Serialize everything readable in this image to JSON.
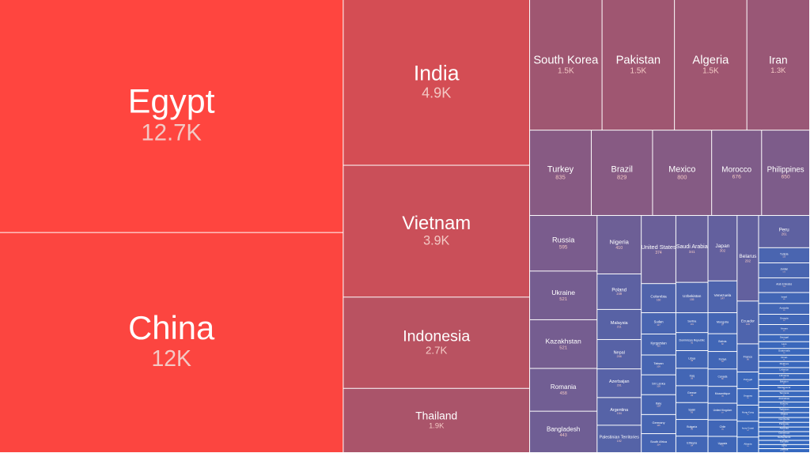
{
  "chart_data": {
    "type": "treemap",
    "title": "",
    "colors": {
      "high": "#ff453f",
      "mid": "#ac5468",
      "low": "#3568bf",
      "label": "#ffffff",
      "value_label": "#f3c8c4",
      "border": "#ffffff"
    },
    "columns": [
      {
        "groups": [
          {
            "items": [
              {
                "name": "Egypt",
                "value": 12700,
                "label": "12.7K"
              },
              {
                "name": "China",
                "value": 12000,
                "label": "12K"
              }
            ]
          }
        ]
      },
      {
        "groups": [
          {
            "items": [
              {
                "name": "India",
                "value": 4900,
                "label": "4.9K"
              },
              {
                "name": "Vietnam",
                "value": 3900,
                "label": "3.9K"
              },
              {
                "name": "Indonesia",
                "value": 2700,
                "label": "2.7K"
              },
              {
                "name": "Thailand",
                "value": 1900,
                "label": "1.9K"
              }
            ]
          }
        ]
      },
      {
        "groups": [
          {
            "layout": "row",
            "items": [
              {
                "name": "South Korea",
                "value": 1500,
                "label": "1.5K"
              },
              {
                "name": "Pakistan",
                "value": 1500,
                "label": "1.5K"
              },
              {
                "name": "Algeria",
                "value": 1500,
                "label": "1.5K"
              },
              {
                "name": "Iran",
                "value": 1300,
                "label": "1.3K"
              }
            ]
          },
          {
            "layout": "row",
            "items": [
              {
                "name": "Turkey",
                "value": 835,
                "label": "835"
              },
              {
                "name": "Brazil",
                "value": 829,
                "label": "829"
              },
              {
                "name": "Mexico",
                "value": 800,
                "label": "800"
              },
              {
                "name": "Morocco",
                "value": 676,
                "label": "676"
              },
              {
                "name": "Philippines",
                "value": 650,
                "label": "650"
              }
            ]
          },
          {
            "layout": "columns",
            "columns": [
              [
                {
                  "name": "Russia",
                  "value": 595,
                  "label": "595"
                },
                {
                  "name": "Ukraine",
                  "value": 521,
                  "label": "521"
                },
                {
                  "name": "Kazakhstan",
                  "value": 521,
                  "label": "521"
                },
                {
                  "name": "Romania",
                  "value": 458,
                  "label": "458"
                },
                {
                  "name": "Bangladesh",
                  "value": 443,
                  "label": "443"
                }
              ],
              [
                {
                  "name": "Nigeria",
                  "value": 410,
                  "label": "410"
                },
                {
                  "name": "Poland",
                  "value": 249,
                  "label": "249"
                },
                {
                  "name": "Malaysia",
                  "value": 211,
                  "label": "211"
                },
                {
                  "name": "Nepal",
                  "value": 206,
                  "label": "206"
                },
                {
                  "name": "Azerbaijan",
                  "value": 201,
                  "label": "201"
                },
                {
                  "name": "Argentina",
                  "value": 194,
                  "label": "194"
                },
                {
                  "name": "Palestinian Territories",
                  "value": 192,
                  "label": "192"
                }
              ],
              [
                {
                  "name": "United States",
                  "value": 374,
                  "label": "374"
                },
                {
                  "name": "Colombia",
                  "value": 160,
                  "label": "160"
                },
                {
                  "name": "Sudan",
                  "value": 117,
                  "label": "117"
                },
                {
                  "name": "Kyrgyzstan",
                  "value": 115,
                  "label": "115"
                },
                {
                  "name": "Taiwan",
                  "value": 109,
                  "label": "109"
                },
                {
                  "name": "Sri Lanka",
                  "value": 109,
                  "label": "109"
                },
                {
                  "name": "Italy",
                  "value": 109,
                  "label": "109"
                },
                {
                  "name": "Germany",
                  "value": 105,
                  "label": "105"
                },
                {
                  "name": "South Africa",
                  "value": 104,
                  "label": "104"
                }
              ],
              [
                {
                  "name": "Saudi Arabia",
                  "value": 341,
                  "label": "341"
                },
                {
                  "name": "Uzbekistan",
                  "value": 155,
                  "label": "155"
                },
                {
                  "name": "Serbia",
                  "value": 101,
                  "label": "101"
                },
                {
                  "name": "Dominican Republic",
                  "value": 92,
                  "label": "92"
                },
                {
                  "name": "Libya",
                  "value": 90,
                  "label": "90"
                },
                {
                  "name": "Iraq",
                  "value": 89,
                  "label": "89"
                },
                {
                  "name": "Greece",
                  "value": 86,
                  "label": "86"
                },
                {
                  "name": "Spain",
                  "value": 86,
                  "label": "86"
                },
                {
                  "name": "Bulgaria",
                  "value": 85,
                  "label": "85"
                },
                {
                  "name": "Ethiopia",
                  "value": 84,
                  "label": "84"
                }
              ],
              [
                {
                  "name": "Japan",
                  "value": 302,
                  "label": "302"
                },
                {
                  "name": "Venezuela",
                  "value": 147,
                  "label": "147"
                },
                {
                  "name": "Mongolia",
                  "value": 97,
                  "label": "97"
                },
                {
                  "name": "Bolivia",
                  "value": 82,
                  "label": "82"
                },
                {
                  "name": "Kenya",
                  "value": 81,
                  "label": "81"
                },
                {
                  "name": "Canada",
                  "value": 80,
                  "label": "80"
                },
                {
                  "name": "Mozambique",
                  "value": 78,
                  "label": "78"
                },
                {
                  "name": "United Kingdom",
                  "value": 77,
                  "label": "77"
                },
                {
                  "name": "Chile",
                  "value": 76,
                  "label": "76"
                },
                {
                  "name": "Uganda",
                  "value": 75,
                  "label": "75"
                }
              ],
              [
                {
                  "name": "Belarus",
                  "value": 292,
                  "label": "292"
                },
                {
                  "name": "Ecuador",
                  "value": 146,
                  "label": "146"
                },
                {
                  "name": "France",
                  "value": 96,
                  "label": "96"
                },
                {
                  "name": "Portugal",
                  "value": 57,
                  "label": "57"
                },
                {
                  "name": "Uruguay",
                  "value": 56,
                  "label": "56"
                },
                {
                  "name": "Hong Kong",
                  "value": 55,
                  "label": "55"
                },
                {
                  "name": "Ivory Coast",
                  "value": 54,
                  "label": "54"
                },
                {
                  "name": "Albania",
                  "value": 53,
                  "label": "53"
                }
              ],
              [
                {
                  "name": "Peru",
                  "value": 261,
                  "label": "261"
                },
                {
                  "name": "Tunisia",
                  "value": 123,
                  "label": "123"
                },
                {
                  "name": "Jordan",
                  "value": 121,
                  "label": "121"
                },
                {
                  "name": "Arab Emirates",
                  "value": 119,
                  "label": "119"
                },
                {
                  "name": "Israel",
                  "value": 88,
                  "label": "88"
                },
                {
                  "name": "Australia",
                  "value": 88,
                  "label": "88"
                },
                {
                  "name": "Georgia",
                  "value": 83,
                  "label": "83"
                },
                {
                  "name": "Yemen",
                  "value": 82,
                  "label": "82"
                },
                {
                  "name": "Senegal",
                  "value": 57,
                  "label": "57"
                },
                {
                  "name": "Laos",
                  "value": 55,
                  "label": "55"
                },
                {
                  "name": "Guatemala",
                  "value": 54,
                  "label": "54"
                },
                {
                  "name": "Oman",
                  "value": 51,
                  "label": "51"
                },
                {
                  "name": "Moldova",
                  "value": 50,
                  "label": "50"
                },
                {
                  "name": "Lebanon",
                  "value": 49,
                  "label": "49"
                },
                {
                  "name": "Lithuania",
                  "value": 48,
                  "label": "48"
                },
                {
                  "name": "Belgium",
                  "value": 47,
                  "label": "47"
                },
                {
                  "name": "Madagascar",
                  "value": 46,
                  "label": "46"
                },
                {
                  "name": "Tanzania",
                  "value": 45,
                  "label": "45"
                },
                {
                  "name": "Zimbabwe",
                  "value": 44,
                  "label": "44"
                },
                {
                  "name": "Kosovo",
                  "value": 43,
                  "label": "43"
                },
                {
                  "name": "Tajikistan",
                  "value": 42,
                  "label": "42"
                },
                {
                  "name": "Ghana",
                  "value": 40,
                  "label": "40"
                },
                {
                  "name": "Cambodia",
                  "value": 39,
                  "label": "39"
                },
                {
                  "name": "Paraguay",
                  "value": 38,
                  "label": "38"
                },
                {
                  "name": "Armenia",
                  "value": 37,
                  "label": "37"
                },
                {
                  "name": "Cameroon",
                  "value": 36,
                  "label": "36"
                },
                {
                  "name": "Netherlands",
                  "value": 35,
                  "label": "35"
                },
                {
                  "name": "Somalia",
                  "value": 34,
                  "label": "34"
                },
                {
                  "name": "Syria",
                  "value": 33,
                  "label": "33"
                },
                {
                  "name": "Zambia",
                  "value": 32,
                  "label": "32"
                }
              ]
            ]
          }
        ]
      }
    ]
  }
}
